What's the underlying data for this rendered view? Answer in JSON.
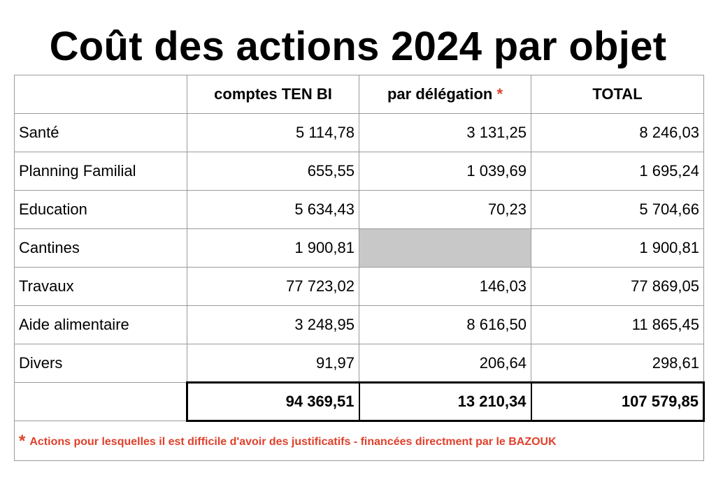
{
  "title": "Coût des actions 2024 par objet",
  "columns": {
    "col1": "comptes TEN BI",
    "col2": "par délégation",
    "col2_mark": "*",
    "col3": "TOTAL"
  },
  "rows": [
    {
      "label": "Santé",
      "ten_bi": "5 114,78",
      "delegation": "3 131,25",
      "total": "8 246,03"
    },
    {
      "label": "Planning Familial",
      "ten_bi": "655,55",
      "delegation": "1 039,69",
      "total": "1 695,24"
    },
    {
      "label": "Education",
      "ten_bi": "5 634,43",
      "delegation": "70,23",
      "total": "5 704,66"
    },
    {
      "label": "Cantines",
      "ten_bi": "1 900,81",
      "delegation": "",
      "total": "1 900,81"
    },
    {
      "label": "Travaux",
      "ten_bi": "77 723,02",
      "delegation": "146,03",
      "total": "77 869,05"
    },
    {
      "label": "Aide alimentaire",
      "ten_bi": "3 248,95",
      "delegation": "8 616,50",
      "total": "11 865,45"
    },
    {
      "label": "Divers",
      "ten_bi": "91,97",
      "delegation": "206,64",
      "total": "298,61"
    }
  ],
  "totals": {
    "ten_bi": "94 369,51",
    "delegation": "13 210,34",
    "total": "107 579,85"
  },
  "footnote": {
    "mark": "*",
    "text": "Actions pour lesquelles il est difficile d'avoir des justificatifs - financées directment par le BAZOUK"
  },
  "colors": {
    "accent": "#e0402b",
    "empty_cell": "#c8c8c8",
    "grid": "#9a9a9a"
  }
}
